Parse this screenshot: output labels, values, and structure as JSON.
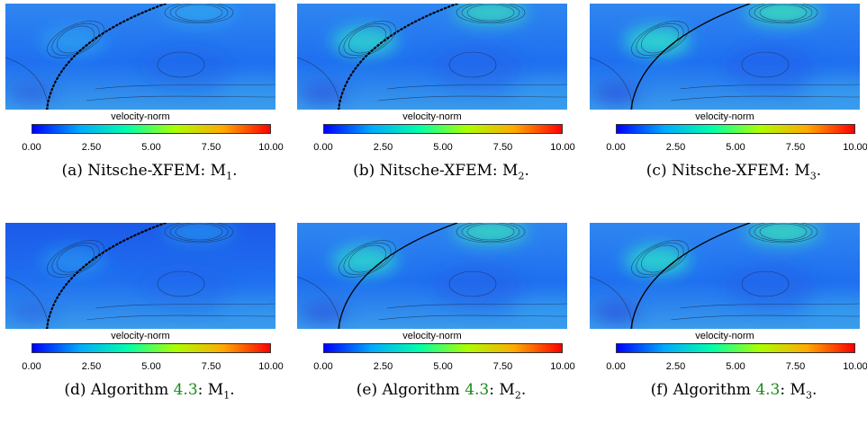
{
  "colorbar": {
    "title": "velocity-norm",
    "ticks": [
      "0.00",
      "2.50",
      "5.00",
      "7.50",
      "10.00"
    ],
    "range": [
      0,
      10
    ],
    "colors": [
      "#0000ff",
      "#00aaff",
      "#00ffaa",
      "#aaff00",
      "#ffaa00",
      "#ff0000"
    ]
  },
  "panels": [
    {
      "label": "(a)",
      "method": "Nitsche-XFEM:",
      "mesh": "M",
      "mesh_sub": "1",
      "ref": "",
      "style": "dotted",
      "intensity": 0.35
    },
    {
      "label": "(b)",
      "method": "Nitsche-XFEM:",
      "mesh": "M",
      "mesh_sub": "2",
      "ref": "",
      "style": "dotted",
      "intensity": 0.7
    },
    {
      "label": "(c)",
      "method": "Nitsche-XFEM:",
      "mesh": "M",
      "mesh_sub": "3",
      "ref": "",
      "style": "solid",
      "intensity": 0.85
    },
    {
      "label": "(d)",
      "method": "Algorithm",
      "mesh": "M",
      "mesh_sub": "1",
      "ref": "4.3",
      "style": "dotted",
      "intensity": 0.2
    },
    {
      "label": "(e)",
      "method": "Algorithm",
      "mesh": "M",
      "mesh_sub": "2",
      "ref": "4.3",
      "style": "solid",
      "intensity": 0.75
    },
    {
      "label": "(f)",
      "method": "Algorithm",
      "mesh": "M",
      "mesh_sub": "3",
      "ref": "4.3",
      "style": "solid",
      "intensity": 0.8
    }
  ]
}
